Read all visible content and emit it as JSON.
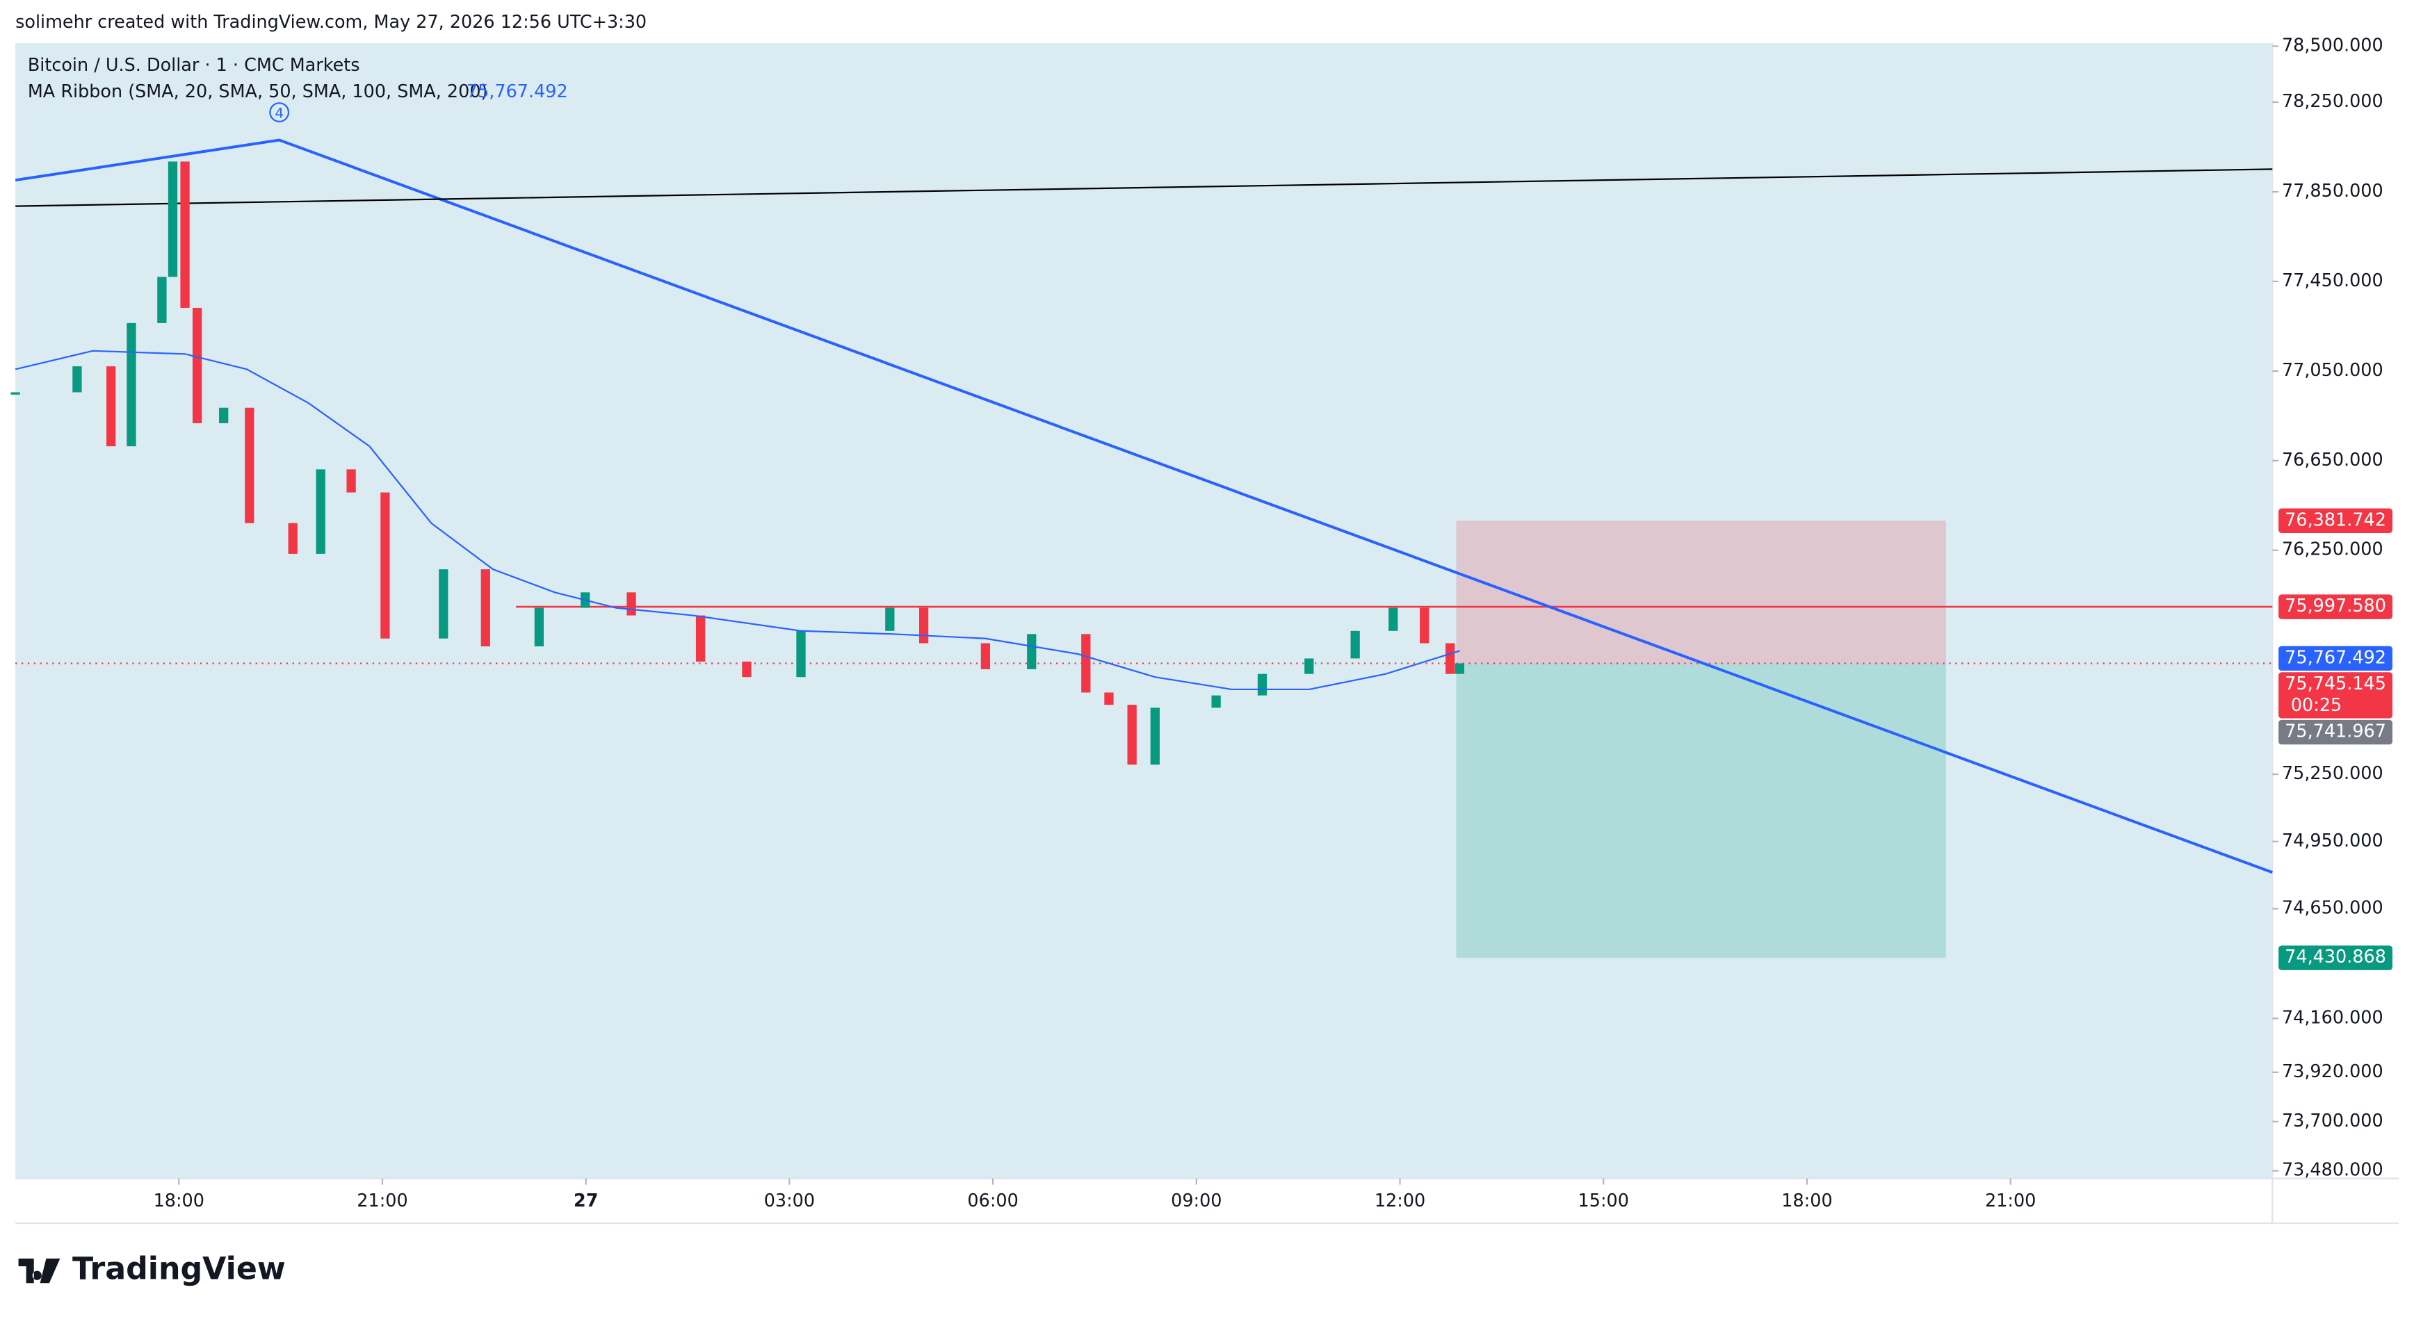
{
  "header": "solimehr created with TradingView.com, May 27, 2026 12:56 UTC+3:30",
  "footer": "TradingView",
  "chart_data": {
    "type": "candlestick",
    "title": "Bitcoin / U.S. Dollar · 1 · CMC Markets",
    "x": [
      15.59,
      16.5,
      17.0,
      17.3,
      17.75,
      17.91,
      18.09,
      18.27,
      18.66,
      19.04,
      19.68,
      20.09,
      20.54,
      21.04,
      21.9,
      22.52,
      23.31,
      23.99,
      24.67,
      25.69,
      26.37,
      27.17,
      28.48,
      28.98,
      29.89,
      30.57,
      31.37,
      31.71,
      32.05,
      32.39,
      33.29,
      33.97,
      34.66,
      35.34,
      35.9,
      36.36,
      36.74,
      36.88
    ],
    "values": [
      76955,
      77071,
      76714,
      77264,
      77470,
      77985,
      77332,
      76817,
      76886,
      76371,
      76234,
      76611,
      76508,
      75856,
      76165,
      75821,
      75993,
      76062,
      75959,
      75753,
      75684,
      75890,
      75993,
      75835,
      75719,
      75876,
      75615,
      75560,
      75293,
      75547,
      75602,
      75698,
      75767,
      75890,
      75993,
      75835,
      75698,
      75745.145
    ],
    "up_color": "#089981",
    "down_color": "#f23645",
    "series": [
      {
        "name": "MA Ribbon (SMA, 20, SMA, 50, SMA, 100, SMA, 200)",
        "color": "#2962ff",
        "x": [
          15.59,
          16.73,
          18.09,
          19.0,
          19.91,
          20.81,
          21.72,
          22.63,
          23.54,
          24.44,
          25.58,
          27.17,
          28.53,
          29.89,
          31.25,
          32.39,
          33.52,
          34.66,
          35.79,
          36.88
        ],
        "values": [
          77058,
          77140,
          77126,
          77058,
          76907,
          76714,
          76371,
          76165,
          76062,
          75993,
          75959,
          75890,
          75876,
          75856,
          75787,
          75684,
          75629,
          75629,
          75698,
          75801
        ],
        "last_value": 75767.492,
        "last_label": "75,767.492"
      }
    ],
    "xlim": [
      15.59,
      48.86
    ],
    "xticks": [
      {
        "value": 18,
        "label": "18:00"
      },
      {
        "value": 21,
        "label": "21:00"
      },
      {
        "value": 24,
        "label": "27"
      },
      {
        "value": 27,
        "label": "03:00"
      },
      {
        "value": 30,
        "label": "06:00"
      },
      {
        "value": 33,
        "label": "09:00"
      },
      {
        "value": 36,
        "label": "12:00"
      },
      {
        "value": 39,
        "label": "15:00"
      },
      {
        "value": 42,
        "label": "18:00"
      },
      {
        "value": 45,
        "label": "21:00"
      }
    ],
    "ylim": [
      73480,
      78500
    ],
    "yticks": [
      {
        "value": 78500,
        "label": "78,500.000"
      },
      {
        "value": 78250,
        "label": "78,250.000"
      },
      {
        "value": 77850,
        "label": "77,850.000"
      },
      {
        "value": 77450,
        "label": "77,450.000"
      },
      {
        "value": 77050,
        "label": "77,050.000"
      },
      {
        "value": 76650,
        "label": "76,650.000"
      },
      {
        "value": 76250,
        "label": "76,250.000"
      },
      {
        "value": 75250,
        "label": "75,250.000"
      },
      {
        "value": 74950,
        "label": "74,950.000"
      },
      {
        "value": 74650,
        "label": "74,650.000"
      },
      {
        "value": 74160,
        "label": "74,160.000"
      },
      {
        "value": 73920,
        "label": "73,920.000"
      },
      {
        "value": 73700,
        "label": "73,700.000"
      },
      {
        "value": 73480,
        "label": "73,480.000"
      }
    ],
    "trendlines": [
      {
        "color": "#2962ff",
        "x": [
          15.59,
          19.48,
          48.86
        ],
        "values": [
          77902,
          78081,
          74812
        ]
      },
      {
        "color": "#000000",
        "x": [
          15.59,
          48.86
        ],
        "values": [
          77786,
          77951
        ]
      }
    ],
    "wave_label": "4",
    "horizontal_line": {
      "value": 75997.58,
      "x_start": 22.97,
      "color": "#f23645"
    },
    "position": {
      "x_start": 36.83,
      "x_end": 44.05,
      "stop": 76381.742,
      "entry": 75745.145,
      "target": 74430.868
    },
    "price_tags": [
      {
        "value": 76381.742,
        "label": "76,381.742",
        "color": "#f23645"
      },
      {
        "value": 75997.58,
        "label": "75,997.580",
        "color": "#f23645"
      },
      {
        "value": 75767.492,
        "label": "75,767.492",
        "color": "#2962ff"
      },
      {
        "value": 75745.145,
        "label": "75,745.145",
        "color": "#f23645"
      },
      {
        "value": 75741.967,
        "label": "75,741.967",
        "color": "#787b86"
      },
      {
        "value": 74430.868,
        "label": "74,430.868",
        "color": "#089981"
      }
    ],
    "countdown": "00:25"
  }
}
